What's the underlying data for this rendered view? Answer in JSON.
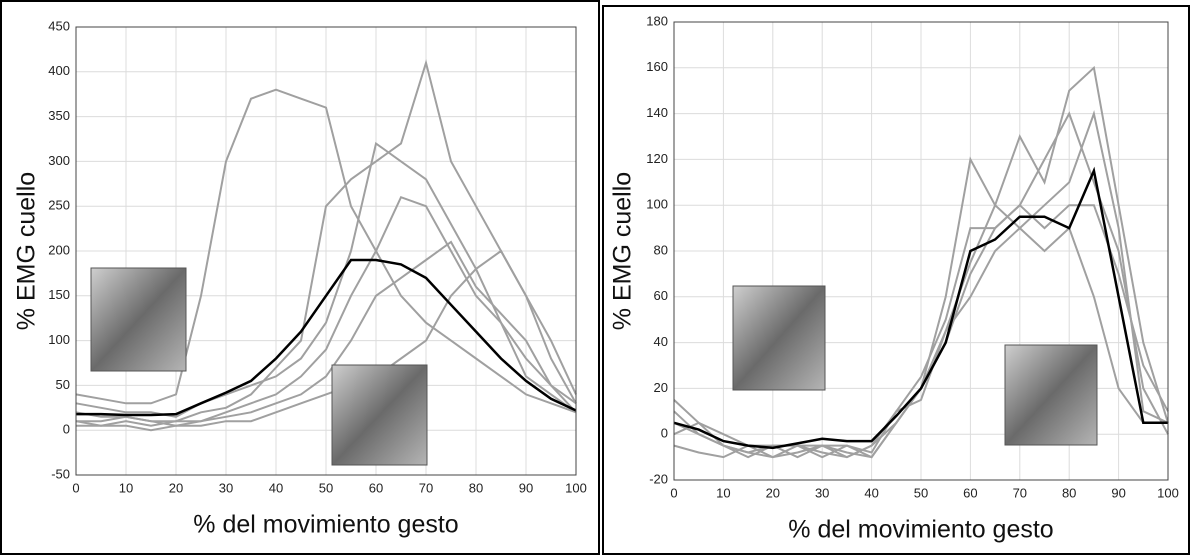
{
  "chart_data": [
    {
      "type": "line",
      "xlabel": "% del movimiento gesto",
      "ylabel": "% EMG cuello",
      "x": [
        0,
        5,
        10,
        15,
        20,
        25,
        30,
        35,
        40,
        45,
        50,
        55,
        60,
        65,
        70,
        75,
        80,
        85,
        90,
        95,
        100
      ],
      "xlim": [
        0,
        100
      ],
      "xticks": [
        0,
        10,
        20,
        30,
        40,
        50,
        60,
        70,
        80,
        90,
        100
      ],
      "ylim": [
        -50,
        450
      ],
      "yticks": [
        -50,
        0,
        50,
        100,
        150,
        200,
        250,
        300,
        350,
        400,
        450
      ],
      "grid": true,
      "series": [
        {
          "color": "#a0a0a0",
          "values": [
            40,
            35,
            30,
            30,
            40,
            150,
            300,
            370,
            380,
            370,
            360,
            250,
            200,
            150,
            120,
            100,
            80,
            60,
            40,
            30,
            20
          ]
        },
        {
          "color": "#a0a0a0",
          "values": [
            10,
            10,
            15,
            10,
            10,
            20,
            25,
            40,
            70,
            100,
            250,
            280,
            300,
            320,
            410,
            300,
            250,
            200,
            150,
            80,
            30
          ]
        },
        {
          "color": "#a0a0a0",
          "values": [
            30,
            25,
            20,
            20,
            15,
            30,
            40,
            50,
            60,
            80,
            120,
            200,
            320,
            300,
            280,
            230,
            180,
            120,
            60,
            40,
            20
          ]
        },
        {
          "color": "#a0a0a0",
          "values": [
            10,
            5,
            10,
            5,
            10,
            10,
            20,
            30,
            40,
            60,
            90,
            150,
            200,
            260,
            250,
            200,
            150,
            120,
            80,
            50,
            30
          ]
        },
        {
          "color": "#a0a0a0",
          "values": [
            20,
            15,
            15,
            10,
            5,
            10,
            15,
            20,
            30,
            40,
            60,
            100,
            150,
            170,
            190,
            210,
            160,
            130,
            100,
            50,
            20
          ]
        },
        {
          "color": "#a0a0a0",
          "values": [
            5,
            5,
            5,
            0,
            5,
            5,
            10,
            10,
            20,
            30,
            40,
            50,
            60,
            80,
            100,
            150,
            180,
            200,
            150,
            100,
            40
          ]
        },
        {
          "color": "#000000",
          "values": [
            18,
            18,
            17,
            17,
            18,
            30,
            42,
            55,
            80,
            110,
            150,
            190,
            190,
            185,
            170,
            140,
            110,
            80,
            55,
            35,
            22
          ]
        }
      ]
    },
    {
      "type": "line",
      "xlabel": "% del movimiento gesto",
      "ylabel": "% EMG cuello",
      "x": [
        0,
        5,
        10,
        15,
        20,
        25,
        30,
        35,
        40,
        45,
        50,
        55,
        60,
        65,
        70,
        75,
        80,
        85,
        90,
        95,
        100
      ],
      "xlim": [
        0,
        100
      ],
      "xticks": [
        0,
        10,
        20,
        30,
        40,
        50,
        60,
        70,
        80,
        90,
        100
      ],
      "ylim": [
        -20,
        180
      ],
      "yticks": [
        -20,
        0,
        20,
        40,
        60,
        80,
        100,
        120,
        140,
        160,
        180
      ],
      "grid": true,
      "series": [
        {
          "color": "#a0a0a0",
          "values": [
            15,
            5,
            -5,
            -8,
            -10,
            -8,
            -5,
            -8,
            -10,
            5,
            20,
            60,
            120,
            100,
            130,
            110,
            150,
            160,
            100,
            40,
            5
          ]
        },
        {
          "color": "#a0a0a0",
          "values": [
            -5,
            -8,
            -10,
            -5,
            -10,
            -5,
            -8,
            -10,
            -5,
            10,
            25,
            50,
            90,
            90,
            100,
            120,
            140,
            110,
            80,
            20,
            0
          ]
        },
        {
          "color": "#a0a0a0",
          "values": [
            0,
            5,
            0,
            -5,
            -5,
            -5,
            -5,
            -10,
            -5,
            5,
            20,
            40,
            70,
            90,
            100,
            90,
            100,
            100,
            70,
            30,
            10
          ]
        },
        {
          "color": "#a0a0a0",
          "values": [
            10,
            0,
            -5,
            -8,
            -5,
            -10,
            -5,
            -5,
            -8,
            10,
            15,
            45,
            75,
            100,
            90,
            100,
            110,
            140,
            90,
            10,
            5
          ]
        },
        {
          "color": "#a0a0a0",
          "values": [
            5,
            0,
            -5,
            -10,
            -5,
            -5,
            -10,
            -5,
            -10,
            5,
            20,
            45,
            60,
            80,
            90,
            80,
            90,
            60,
            20,
            5,
            5
          ]
        },
        {
          "color": "#000000",
          "values": [
            5,
            2,
            -3,
            -5,
            -6,
            -4,
            -2,
            -3,
            -3,
            8,
            20,
            40,
            80,
            85,
            95,
            95,
            90,
            115,
            60,
            5,
            5
          ]
        }
      ]
    }
  ]
}
